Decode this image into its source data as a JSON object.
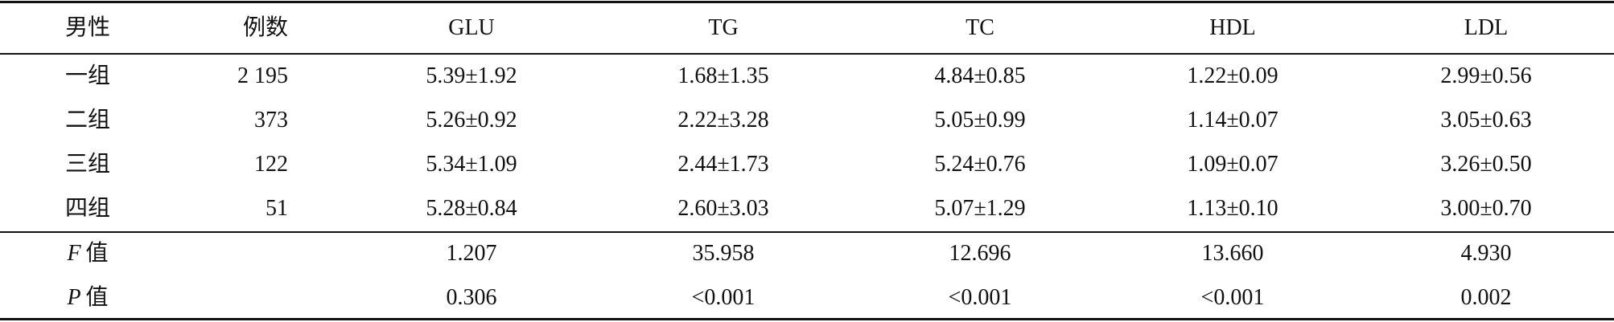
{
  "table": {
    "header": [
      "男性",
      "例数",
      "GLU",
      "TG",
      "TC",
      "HDL",
      "LDL"
    ],
    "rows": [
      [
        "一组",
        "2 195",
        "5.39±1.92",
        "1.68±1.35",
        "4.84±0.85",
        "1.22±0.09",
        "2.99±0.56"
      ],
      [
        "二组",
        "373",
        "5.26±0.92",
        "2.22±3.28",
        "5.05±0.99",
        "1.14±0.07",
        "3.05±0.63"
      ],
      [
        "三组",
        "122",
        "5.34±1.09",
        "2.44±1.73",
        "5.24±0.76",
        "1.09±0.07",
        "3.26±0.50"
      ],
      [
        "四组",
        "51",
        "5.28±0.84",
        "2.60±3.03",
        "5.07±1.29",
        "1.13±0.10",
        "3.00±0.70"
      ]
    ],
    "stats": [
      {
        "symbol": "F",
        "label": "值",
        "values": [
          "1.207",
          "35.958",
          "12.696",
          "13.660",
          "4.930"
        ]
      },
      {
        "symbol": "P",
        "label": "值",
        "values": [
          "0.306",
          "<0.001",
          "<0.001",
          "<0.001",
          "0.002"
        ]
      }
    ]
  }
}
